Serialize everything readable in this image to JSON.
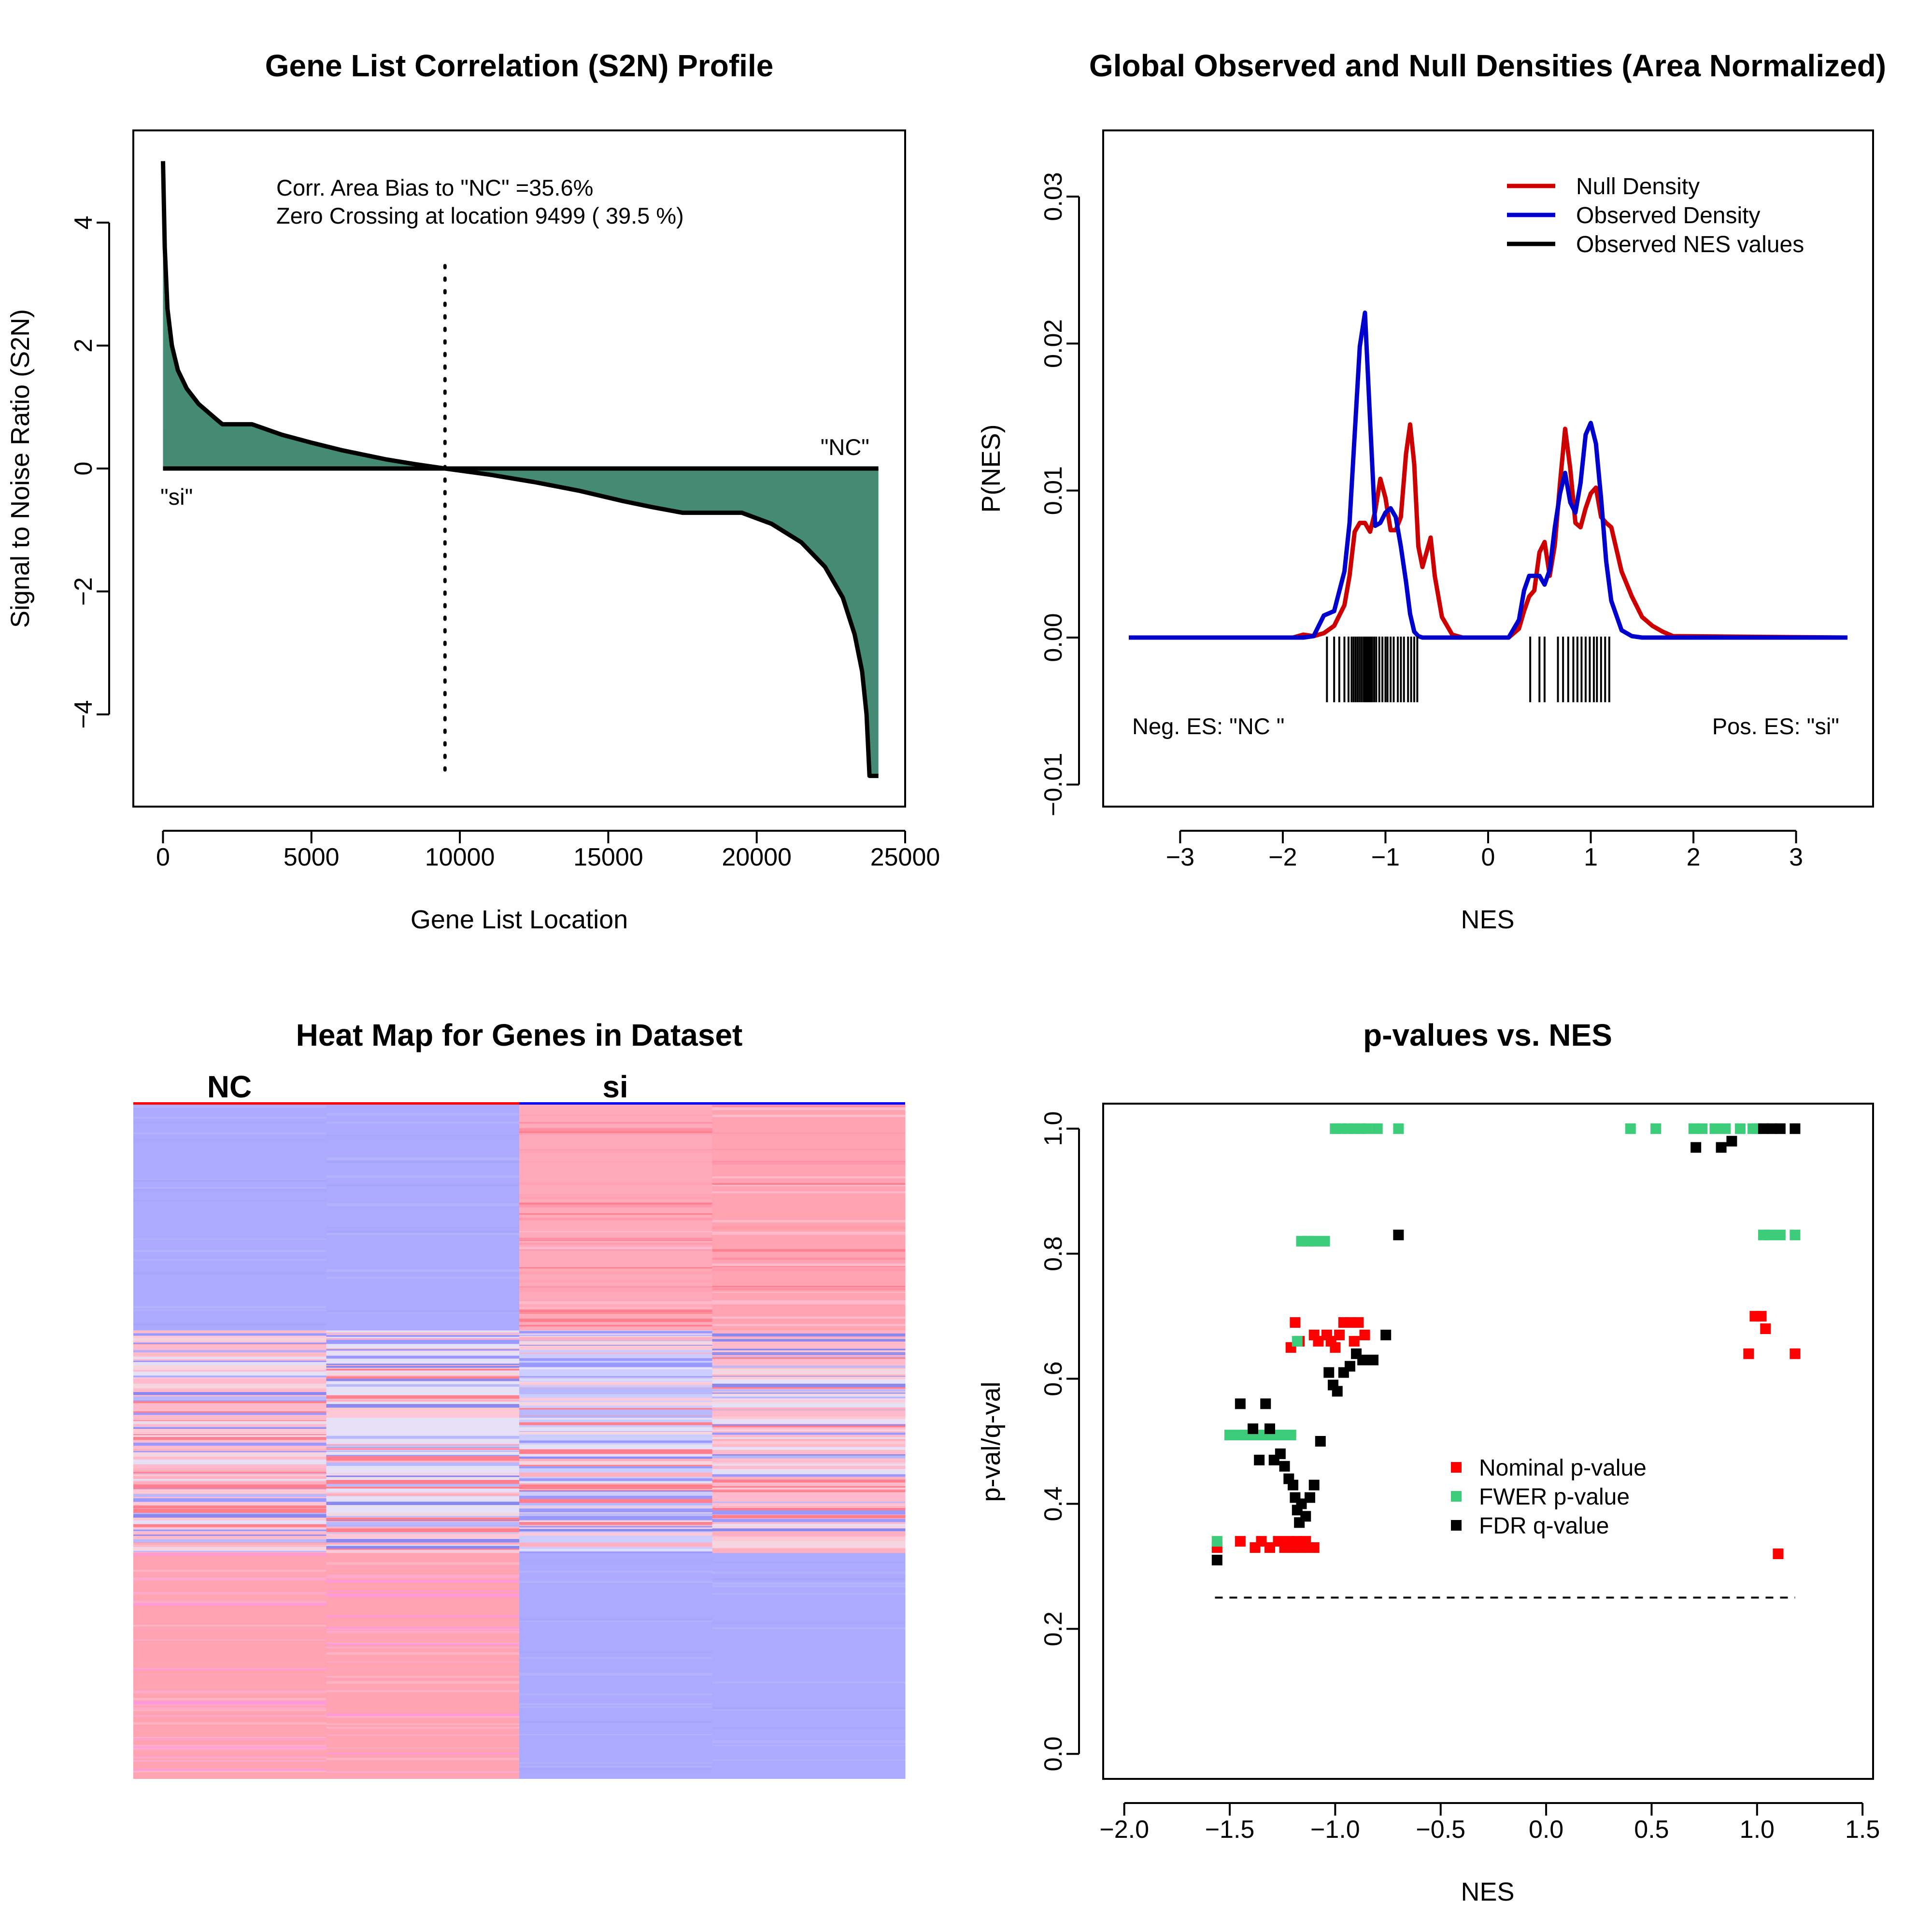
{
  "chart_data": [
    {
      "type": "area",
      "title": "Gene List Correlation (S2N) Profile",
      "xlabel": "Gene List Location",
      "ylabel": "Signal to Noise Ratio (S2N)",
      "xlim": [
        -1000,
        25000
      ],
      "ylim": [
        -5.5,
        5.5
      ],
      "xticks": [
        0,
        5000,
        10000,
        15000,
        20000,
        25000
      ],
      "yticks": [
        -4,
        -2,
        0,
        2,
        4
      ],
      "x": [
        0,
        60,
        150,
        300,
        500,
        800,
        1200,
        1800,
        2000,
        3000,
        4000,
        5000,
        6000,
        6500,
        7500,
        8500,
        9499,
        11000,
        12500,
        14000,
        15500,
        16500,
        17500,
        18500,
        19500,
        20500,
        21500,
        22300,
        22900,
        23300,
        23550,
        23700,
        23800,
        23900,
        24100
      ],
      "values": [
        5.0,
        3.6,
        2.6,
        2.0,
        1.6,
        1.3,
        1.05,
        0.8,
        0.72,
        0.72,
        0.55,
        0.42,
        0.3,
        0.25,
        0.15,
        0.07,
        0.0,
        -0.1,
        -0.22,
        -0.36,
        -0.53,
        -0.63,
        -0.72,
        -0.72,
        -0.72,
        -0.9,
        -1.2,
        -1.6,
        -2.1,
        -2.7,
        -3.3,
        -4.0,
        -5.0,
        -5.0,
        -5.0
      ],
      "fill_color": "#458B74",
      "zero_crossing": 9499,
      "annotations": [
        "Corr. Area Bias to \"NC\" =35.6%",
        "Zero Crossing at location  9499  ( 39.5  %)"
      ],
      "left_label": "\"si\"",
      "right_label": "\"NC\""
    },
    {
      "type": "line",
      "title": "Global Observed and Null Densities (Area Normalized)",
      "xlabel": "NES",
      "ylabel": "P(NES)",
      "xlim": [
        -3.5,
        3.5
      ],
      "ylim": [
        -0.0115,
        0.0345
      ],
      "xticks": [
        -3,
        -2,
        -1,
        0,
        1,
        2,
        3
      ],
      "yticks": [
        -0.01,
        0.0,
        0.01,
        0.02,
        0.03
      ],
      "x": [
        -3.5,
        -1.9,
        -1.8,
        -1.7,
        -1.6,
        -1.5,
        -1.4,
        -1.35,
        -1.3,
        -1.25,
        -1.2,
        -1.15,
        -1.1,
        -1.05,
        -1.0,
        -0.95,
        -0.9,
        -0.85,
        -0.8,
        -0.76,
        -0.72,
        -0.68,
        -0.64,
        -0.6,
        -0.56,
        -0.52,
        -0.45,
        -0.35,
        -0.25,
        0.2,
        0.3,
        0.35,
        0.4,
        0.45,
        0.5,
        0.55,
        0.6,
        0.65,
        0.7,
        0.75,
        0.8,
        0.85,
        0.9,
        0.95,
        1.0,
        1.05,
        1.1,
        1.15,
        1.2,
        1.3,
        1.4,
        1.5,
        1.6,
        1.7,
        1.8,
        3.5
      ],
      "series": [
        {
          "name": "Null Density",
          "color": "#CC0000",
          "values": [
            0,
            0,
            0.0002,
            0.0001,
            0.0003,
            0.0008,
            0.0022,
            0.0042,
            0.0072,
            0.0078,
            0.0078,
            0.0072,
            0.0086,
            0.0108,
            0.0095,
            0.0073,
            0.0073,
            0.0082,
            0.0125,
            0.0145,
            0.0118,
            0.0062,
            0.0048,
            0.0058,
            0.0068,
            0.0042,
            0.0014,
            0.0002,
            0,
            0,
            0.0006,
            0.0018,
            0.0028,
            0.0032,
            0.0058,
            0.0065,
            0.0042,
            0.0063,
            0.0105,
            0.0142,
            0.0115,
            0.0078,
            0.0075,
            0.0088,
            0.0098,
            0.0102,
            0.0082,
            0.0078,
            0.0075,
            0.0045,
            0.0028,
            0.0014,
            0.0008,
            0.0004,
            0.0001,
            0
          ]
        },
        {
          "name": "Observed Density",
          "color": "#0000CC",
          "values": [
            0,
            0,
            0,
            0.0001,
            0.0015,
            0.0018,
            0.0045,
            0.0078,
            0.0138,
            0.0198,
            0.0221,
            0.0148,
            0.0076,
            0.0078,
            0.0085,
            0.0088,
            0.0082,
            0.0062,
            0.0038,
            0.0016,
            0.0004,
            0.0001,
            0,
            0,
            0,
            0,
            0,
            0,
            0,
            0,
            0.0012,
            0.0032,
            0.0042,
            0.0042,
            0.0042,
            0.0036,
            0.0046,
            0.0075,
            0.0098,
            0.0112,
            0.0092,
            0.0085,
            0.0105,
            0.0138,
            0.0146,
            0.0132,
            0.0095,
            0.0052,
            0.0025,
            0.0005,
            0.0001,
            0,
            0,
            0,
            0,
            0
          ]
        }
      ],
      "observed_nes_ticks": [
        -1.57,
        -1.5,
        -1.45,
        -1.4,
        -1.36,
        -1.33,
        -1.31,
        -1.29,
        -1.27,
        -1.25,
        -1.23,
        -1.21,
        -1.2,
        -1.19,
        -1.18,
        -1.17,
        -1.16,
        -1.15,
        -1.14,
        -1.13,
        -1.11,
        -1.09,
        -1.06,
        -1.03,
        -1.0,
        -0.98,
        -0.95,
        -0.92,
        -0.88,
        -0.85,
        -0.82,
        -0.78,
        -0.75,
        -0.72,
        -0.69,
        0.41,
        0.5,
        0.55,
        0.68,
        0.73,
        0.78,
        0.83,
        0.87,
        0.91,
        0.95,
        0.99,
        1.03,
        1.06,
        1.1,
        1.14,
        1.18
      ],
      "legend": [
        "Null Density",
        "Observed Density",
        "Observed NES values"
      ],
      "legend_black": "#000000",
      "left_label": "Neg. ES: \"NC \"",
      "right_label": "Pos. ES: \"si\""
    },
    {
      "type": "heatmap",
      "title": "Heat Map for Genes in Dataset",
      "groups": [
        "NC",
        "si"
      ],
      "group_colors": [
        "#FF0000",
        "#0000FF"
      ],
      "columns": 4,
      "blocks": [
        {
          "rows": [
            0,
            0.335
          ],
          "colors": [
            "#AAAAFF",
            "#AAAAFF",
            "#FFAABB",
            "#FFA2B2"
          ]
        },
        {
          "rows": [
            0.335,
            0.665
          ],
          "colors": [
            "#FFBBCC",
            "#E6E0F6",
            "#CCCCFF",
            "#FFBBCC"
          ]
        },
        {
          "rows": [
            0.665,
            1.0
          ],
          "colors": [
            "#FFA2B2",
            "#FFA2B2",
            "#AAAAFF",
            "#AAAAFF"
          ]
        }
      ]
    },
    {
      "type": "scatter",
      "title": "p-values vs. NES",
      "xlabel": "NES",
      "ylabel": "p-val/q-val",
      "xlim": [
        -2.1,
        1.55
      ],
      "ylim": [
        -0.04,
        1.04
      ],
      "xticks": [
        -2.0,
        -1.5,
        -1.0,
        -0.5,
        0.0,
        0.5,
        1.0,
        1.5
      ],
      "xtick_labels": [
        "−2.0",
        "−1.5",
        "−1.0",
        "−0.5",
        "0.0",
        "0.5",
        "1.0",
        "1.5"
      ],
      "yticks": [
        0.0,
        0.2,
        0.4,
        0.6,
        0.8,
        1.0
      ],
      "threshold": 0.25,
      "threshold_range": [
        -1.57,
        1.18
      ],
      "series": [
        {
          "name": "Nominal p-value",
          "color": "#FF0000",
          "points": [
            [
              -1.56,
              0.33
            ],
            [
              -1.45,
              0.34
            ],
            [
              -1.38,
              0.33
            ],
            [
              -1.35,
              0.34
            ],
            [
              -1.31,
              0.33
            ],
            [
              -1.27,
              0.34
            ],
            [
              -1.24,
              0.33
            ],
            [
              -1.22,
              0.34
            ],
            [
              -1.2,
              0.33
            ],
            [
              -1.18,
              0.34
            ],
            [
              -1.16,
              0.33
            ],
            [
              -1.14,
              0.34
            ],
            [
              -1.12,
              0.33
            ],
            [
              -1.1,
              0.33
            ],
            [
              -1.21,
              0.65
            ],
            [
              -1.19,
              0.69
            ],
            [
              -1.17,
              0.66
            ],
            [
              -1.1,
              0.67
            ],
            [
              -1.08,
              0.66
            ],
            [
              -1.04,
              0.67
            ],
            [
              -1.02,
              0.66
            ],
            [
              -1.0,
              0.65
            ],
            [
              -0.98,
              0.67
            ],
            [
              -0.96,
              0.69
            ],
            [
              -0.93,
              0.69
            ],
            [
              -0.91,
              0.66
            ],
            [
              -0.89,
              0.69
            ],
            [
              -0.86,
              0.67
            ],
            [
              0.96,
              0.64
            ],
            [
              0.99,
              0.7
            ],
            [
              1.02,
              0.7
            ],
            [
              1.04,
              0.68
            ],
            [
              1.1,
              0.32
            ],
            [
              1.18,
              0.64
            ]
          ]
        },
        {
          "name": "FWER p-value",
          "color": "#3CCC7A",
          "points": [
            [
              -1.56,
              0.34
            ],
            [
              -1.5,
              0.51
            ],
            [
              -1.45,
              0.51
            ],
            [
              -1.42,
              0.51
            ],
            [
              -1.39,
              0.51
            ],
            [
              -1.36,
              0.51
            ],
            [
              -1.33,
              0.51
            ],
            [
              -1.3,
              0.51
            ],
            [
              -1.27,
              0.51
            ],
            [
              -1.24,
              0.51
            ],
            [
              -1.21,
              0.51
            ],
            [
              -1.18,
              0.66
            ],
            [
              -1.16,
              0.82
            ],
            [
              -1.13,
              0.82
            ],
            [
              -1.1,
              0.82
            ],
            [
              -1.05,
              0.82
            ],
            [
              -1.0,
              1.0
            ],
            [
              -0.97,
              1.0
            ],
            [
              -0.94,
              1.0
            ],
            [
              -0.91,
              1.0
            ],
            [
              -0.88,
              1.0
            ],
            [
              -0.85,
              1.0
            ],
            [
              -0.8,
              1.0
            ],
            [
              -0.7,
              1.0
            ],
            [
              0.4,
              1.0
            ],
            [
              0.52,
              1.0
            ],
            [
              0.7,
              1.0
            ],
            [
              0.74,
              1.0
            ],
            [
              0.8,
              1.0
            ],
            [
              0.85,
              1.0
            ],
            [
              0.92,
              1.0
            ],
            [
              0.98,
              1.0
            ],
            [
              1.0,
              1.0
            ],
            [
              1.03,
              0.83
            ],
            [
              1.06,
              0.83
            ],
            [
              1.11,
              0.83
            ],
            [
              1.18,
              0.83
            ]
          ]
        },
        {
          "name": "FDR q-value",
          "color": "#000000",
          "points": [
            [
              -1.56,
              0.31
            ],
            [
              -1.45,
              0.56
            ],
            [
              -1.39,
              0.52
            ],
            [
              -1.36,
              0.47
            ],
            [
              -1.33,
              0.56
            ],
            [
              -1.31,
              0.52
            ],
            [
              -1.29,
              0.47
            ],
            [
              -1.26,
              0.48
            ],
            [
              -1.24,
              0.46
            ],
            [
              -1.22,
              0.44
            ],
            [
              -1.2,
              0.43
            ],
            [
              -1.19,
              0.41
            ],
            [
              -1.18,
              0.39
            ],
            [
              -1.17,
              0.37
            ],
            [
              -1.16,
              0.4
            ],
            [
              -1.14,
              0.38
            ],
            [
              -1.12,
              0.41
            ],
            [
              -1.1,
              0.43
            ],
            [
              -1.07,
              0.5
            ],
            [
              -1.03,
              0.61
            ],
            [
              -1.01,
              0.59
            ],
            [
              -0.99,
              0.58
            ],
            [
              -0.96,
              0.61
            ],
            [
              -0.93,
              0.62
            ],
            [
              -0.9,
              0.64
            ],
            [
              -0.87,
              0.63
            ],
            [
              -0.82,
              0.63
            ],
            [
              -0.76,
              0.67
            ],
            [
              -0.7,
              0.83
            ],
            [
              0.71,
              0.97
            ],
            [
              0.83,
              0.97
            ],
            [
              0.88,
              0.98
            ],
            [
              1.03,
              1.0
            ],
            [
              1.07,
              1.0
            ],
            [
              1.11,
              1.0
            ],
            [
              1.18,
              1.0
            ]
          ]
        }
      ],
      "legend": [
        "Nominal p-value",
        "FWER p-value",
        "FDR q-value"
      ],
      "threshold_color": "#000000"
    }
  ]
}
